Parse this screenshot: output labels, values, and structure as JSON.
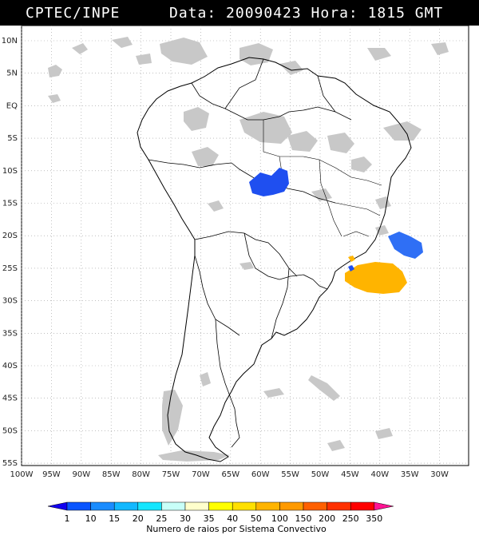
{
  "header": {
    "source": "CPTEC/INPE",
    "datetime": "Data: 20090423 Hora: 1815 GMT"
  },
  "map": {
    "lat_labels": [
      "10N",
      "5N",
      "EQ",
      "5S",
      "10S",
      "15S",
      "20S",
      "25S",
      "30S",
      "35S",
      "40S",
      "45S",
      "50S",
      "55S"
    ],
    "lon_labels": [
      "100W",
      "95W",
      "90W",
      "85W",
      "80W",
      "75W",
      "70W",
      "65W",
      "60W",
      "55W",
      "50W",
      "45W",
      "40W",
      "35W",
      "30W"
    ],
    "colors": {
      "cloud": "#c8c8c8",
      "coast": "#000000",
      "grid": "#9a9a9a"
    },
    "systems": [
      {
        "name": "central-brazil-system",
        "color": "#1f4ff0"
      },
      {
        "name": "southeast-offshore-system",
        "color": "#2f6ff5"
      },
      {
        "name": "south-atlantic-system",
        "color": "#ffb400"
      },
      {
        "name": "small-coastal-system",
        "color": "#ffb400"
      }
    ]
  },
  "legend": {
    "labels": [
      "1",
      "10",
      "15",
      "20",
      "25",
      "30",
      "35",
      "40",
      "50",
      "100",
      "150",
      "200",
      "250",
      "350"
    ],
    "colors": [
      "#1200f0",
      "#0a55ff",
      "#1a8cff",
      "#12b8ff",
      "#15e6ff",
      "#c8fff8",
      "#ffffcc",
      "#ffff00",
      "#ffe000",
      "#ffb400",
      "#ff9a00",
      "#ff6000",
      "#ff3000",
      "#ff0000",
      "#ff1493"
    ],
    "title": "Numero de raios por Sistema Convectivo"
  }
}
